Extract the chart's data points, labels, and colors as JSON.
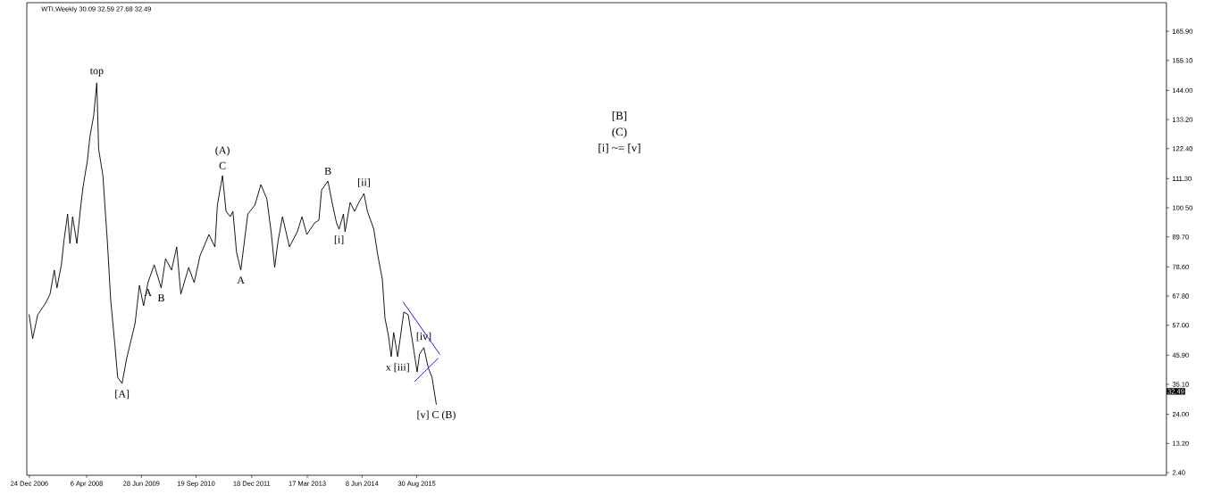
{
  "chart_data": {
    "type": "line",
    "title": "WTI,Weekly  30.09 32.59 27.68 32.49",
    "xlim": [
      "2006-12-03",
      "2032-06-18"
    ],
    "xticks": [
      {
        "value": "2006-12-24",
        "label": "24 Dec 2006"
      },
      {
        "value": "2008-04-06",
        "label": "6 Apr 2008"
      },
      {
        "value": "2009-06-28",
        "label": "28 Jun 2009"
      },
      {
        "value": "2010-09-19",
        "label": "19 Sep 2010"
      },
      {
        "value": "2011-12-18",
        "label": "18 Dec 2011"
      },
      {
        "value": "2013-03-17",
        "label": "17 Mar 2013"
      },
      {
        "value": "2014-06-08",
        "label": "8 Jun 2014"
      },
      {
        "value": "2015-08-30",
        "label": "30 Aug 2015"
      }
    ],
    "ylim": [
      1.4,
      176.5
    ],
    "yticks": [
      {
        "value": 2.4,
        "label": "2.40"
      },
      {
        "value": 13.2,
        "label": "13.20"
      },
      {
        "value": 24,
        "label": "24.00"
      },
      {
        "value": 35.1,
        "label": "35.10"
      },
      {
        "value": 45.9,
        "label": "45.90"
      },
      {
        "value": 57,
        "label": "57.00"
      },
      {
        "value": 67.8,
        "label": "67.80"
      },
      {
        "value": 78.6,
        "label": "78.60"
      },
      {
        "value": 89.7,
        "label": "89.70"
      },
      {
        "value": 100.5,
        "label": "100.50"
      },
      {
        "value": 111.3,
        "label": "111.30"
      },
      {
        "value": 122.4,
        "label": "122.40"
      },
      {
        "value": 133.2,
        "label": "133.20"
      },
      {
        "value": 144,
        "label": "144.00"
      },
      {
        "value": 155.1,
        "label": "155.10"
      },
      {
        "value": 165.9,
        "label": "165.90"
      }
    ],
    "series": [
      {
        "color": "#000000",
        "x": [
          "2006-12-22",
          "2007-01-20",
          "2007-03-03",
          "2007-05-06",
          "2007-06-11",
          "2007-07-16",
          "2007-08-07",
          "2007-09-12",
          "2007-10-03",
          "2007-11-02",
          "2007-11-21",
          "2007-12-13",
          "2008-01-17",
          "2008-02-16",
          "2008-03-07",
          "2008-04-12",
          "2008-05-03",
          "2008-06-02",
          "2008-06-28",
          "2008-07-13",
          "2008-08-17",
          "2008-09-22",
          "2008-10-20",
          "2008-11-25",
          "2008-12-16",
          "2009-01-21",
          "2009-02-26",
          "2009-04-02",
          "2009-05-07",
          "2009-06-12",
          "2009-07-16",
          "2009-08-21",
          "2009-10-11",
          "2009-12-07",
          "2010-01-12",
          "2010-03-02",
          "2010-04-13",
          "2010-05-17",
          "2010-07-20",
          "2010-09-03",
          "2010-10-21",
          "2011-01-02",
          "2011-02-20",
          "2011-03-12",
          "2011-04-23",
          "2011-05-22",
          "2011-06-26",
          "2011-07-17",
          "2011-08-16",
          "2011-09-20",
          "2011-11-16",
          "2012-01-13",
          "2012-03-02",
          "2012-04-20",
          "2012-05-25",
          "2012-06-23",
          "2012-07-21",
          "2012-08-26",
          "2012-10-22",
          "2012-12-25",
          "2013-02-02",
          "2013-03-13",
          "2013-05-16",
          "2013-06-20",
          "2013-07-12",
          "2013-09-02",
          "2013-10-06",
          "2013-11-11",
          "2013-12-02",
          "2014-01-07",
          "2014-01-20",
          "2014-03-03",
          "2014-04-08",
          "2014-05-13",
          "2014-06-24",
          "2014-07-22",
          "2014-09-12",
          "2014-10-16",
          "2014-11-21",
          "2014-12-13",
          "2015-01-11",
          "2015-02-02",
          "2015-02-22",
          "2015-03-27",
          "2015-05-16",
          "2015-06-21",
          "2015-07-26",
          "2015-09-02",
          "2015-09-22",
          "2015-10-27",
          "2015-12-03",
          "2016-01-02",
          "2016-02-06"
        ],
        "values": [
          60.9,
          52.0,
          60.9,
          65.2,
          68.5,
          77.4,
          70.8,
          79.4,
          88.3,
          98.2,
          87.3,
          97.2,
          87.3,
          100.5,
          108.1,
          118.0,
          126.9,
          134.5,
          146.8,
          122.3,
          112.4,
          88.3,
          66.2,
          48.7,
          37.7,
          35.4,
          44.4,
          51.0,
          57.6,
          71.8,
          64.2,
          72.8,
          79.4,
          70.8,
          81.7,
          77.4,
          86.0,
          68.5,
          78.4,
          72.8,
          82.7,
          90.6,
          86.0,
          101.5,
          112.4,
          99.2,
          97.2,
          99.2,
          84.0,
          77.4,
          98.2,
          101.5,
          109.1,
          103.8,
          91.6,
          78.4,
          88.3,
          97.2,
          86.0,
          91.6,
          97.2,
          90.6,
          94.9,
          95.9,
          107.1,
          110.4,
          102.5,
          94.9,
          92.6,
          98.2,
          91.6,
          102.5,
          99.2,
          102.5,
          105.8,
          99.2,
          92.6,
          82.7,
          74.1,
          59.6,
          52.9,
          45.3,
          54.3,
          45.3,
          61.9,
          60.9,
          51.0,
          39.7,
          46.3,
          48.7,
          41.1,
          37.7,
          27.7
        ]
      },
      {
        "type": "line",
        "color": "#0000ff",
        "x": [
          "2015-05-12",
          "2016-03-04"
        ],
        "values": [
          65.5,
          46.3
        ]
      },
      {
        "type": "line",
        "color": "#0000ff",
        "x": [
          "2015-08-12",
          "2016-02-20"
        ],
        "values": [
          36.1,
          44.7
        ]
      }
    ],
    "annotations": [
      {
        "text": "top",
        "x": "2008-06-28",
        "y": 146.8
      },
      {
        "text": "[A]",
        "x": "2009-01-21",
        "y": 35.4
      },
      {
        "text": "A",
        "x": "2009-08-21",
        "y": 72.8
      },
      {
        "text": "B",
        "x": "2009-12-07",
        "y": 70.8
      },
      {
        "text": "C",
        "x": "2011-04-23",
        "y": 112.4
      },
      {
        "text": "(A)",
        "x": "2011-04-23",
        "y": 112.4
      },
      {
        "text": "A",
        "x": "2011-09-20",
        "y": 77.4
      },
      {
        "text": "B",
        "x": "2013-09-02",
        "y": 110.4
      },
      {
        "text": "[i]",
        "x": "2013-12-02",
        "y": 92.6
      },
      {
        "text": "[ii]",
        "x": "2014-06-24",
        "y": 105.8
      },
      {
        "text": "x [iii]",
        "x": "2015-03-27",
        "y": 45.3
      },
      {
        "text": "[iv]",
        "x": "2015-10-27",
        "y": 48.7
      },
      {
        "text": "[v] C (B)",
        "x": "2016-02-06",
        "y": 27.7
      },
      "[B]",
      "(C)",
      "[i] ~= [v]",
      {
        "text": "32.49",
        "y": 32.49
      }
    ]
  }
}
